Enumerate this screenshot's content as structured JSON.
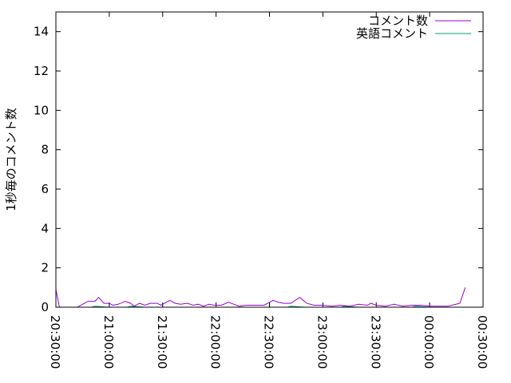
{
  "chart_data": {
    "type": "line",
    "title": "",
    "xlabel": "",
    "ylabel": "1秒毎のコメント数",
    "xlim": [
      "20:30:00",
      "00:30:00"
    ],
    "ylim": [
      0,
      15
    ],
    "x_ticks": [
      "20:30:00",
      "21:00:00",
      "21:30:00",
      "22:00:00",
      "22:30:00",
      "23:00:00",
      "23:30:00",
      "00:00:00",
      "00:30:00"
    ],
    "y_ticks": [
      0,
      2,
      4,
      6,
      8,
      10,
      12,
      14
    ],
    "grid": false,
    "legend": "top-right",
    "series": [
      {
        "name": "コメント数",
        "color": "#9400d3",
        "x": [
          "20:30",
          "20:32",
          "20:42",
          "20:48",
          "20:52",
          "20:54",
          "20:57",
          "21:00",
          "21:02",
          "21:05",
          "21:09",
          "21:12",
          "21:14",
          "21:17",
          "21:20",
          "21:23",
          "21:27",
          "21:29",
          "21:34",
          "21:37",
          "21:40",
          "21:44",
          "21:47",
          "21:50",
          "21:53",
          "21:56",
          "21:59",
          "22:03",
          "22:07",
          "22:10",
          "22:13",
          "22:17",
          "22:20",
          "22:27",
          "22:32",
          "22:35",
          "22:38",
          "22:42",
          "22:47",
          "22:51",
          "22:55",
          "23:00",
          "23:05",
          "23:10",
          "23:15",
          "23:20",
          "23:25",
          "23:27",
          "23:30",
          "23:35",
          "23:40",
          "23:45",
          "23:50",
          "23:55",
          "00:00",
          "00:05",
          "00:10",
          "00:17",
          "00:20"
        ],
        "values": [
          0.9,
          0,
          0,
          0.3,
          0.3,
          0.5,
          0.2,
          0.2,
          0.1,
          0.15,
          0.3,
          0.2,
          0.05,
          0.2,
          0.1,
          0.2,
          0.2,
          0.1,
          0.35,
          0.2,
          0.15,
          0.2,
          0.1,
          0.15,
          0.05,
          0.15,
          0.1,
          0.1,
          0.25,
          0.15,
          0.05,
          0.1,
          0.1,
          0.1,
          0.35,
          0.25,
          0.2,
          0.2,
          0.5,
          0.2,
          0.1,
          0.1,
          0.05,
          0.1,
          0.05,
          0.15,
          0.1,
          0.2,
          0.1,
          0.05,
          0.15,
          0.05,
          0.1,
          0.1,
          0.05,
          0.05,
          0.05,
          0.2,
          1.0
        ]
      },
      {
        "name": "英語コメント",
        "color": "#009e73",
        "x": [
          "20:30",
          "20:50",
          "20:52",
          "21:00",
          "21:10",
          "21:12",
          "21:20",
          "22:30",
          "22:40",
          "22:42",
          "22:50",
          "23:00",
          "23:10",
          "23:12",
          "23:20",
          "23:50",
          "23:52",
          "00:00",
          "00:20"
        ],
        "values": [
          0,
          0,
          0.05,
          0,
          0,
          0.05,
          0,
          0,
          0,
          0.05,
          0,
          0,
          0,
          0.05,
          0,
          0,
          0.05,
          0,
          0
        ]
      }
    ]
  }
}
